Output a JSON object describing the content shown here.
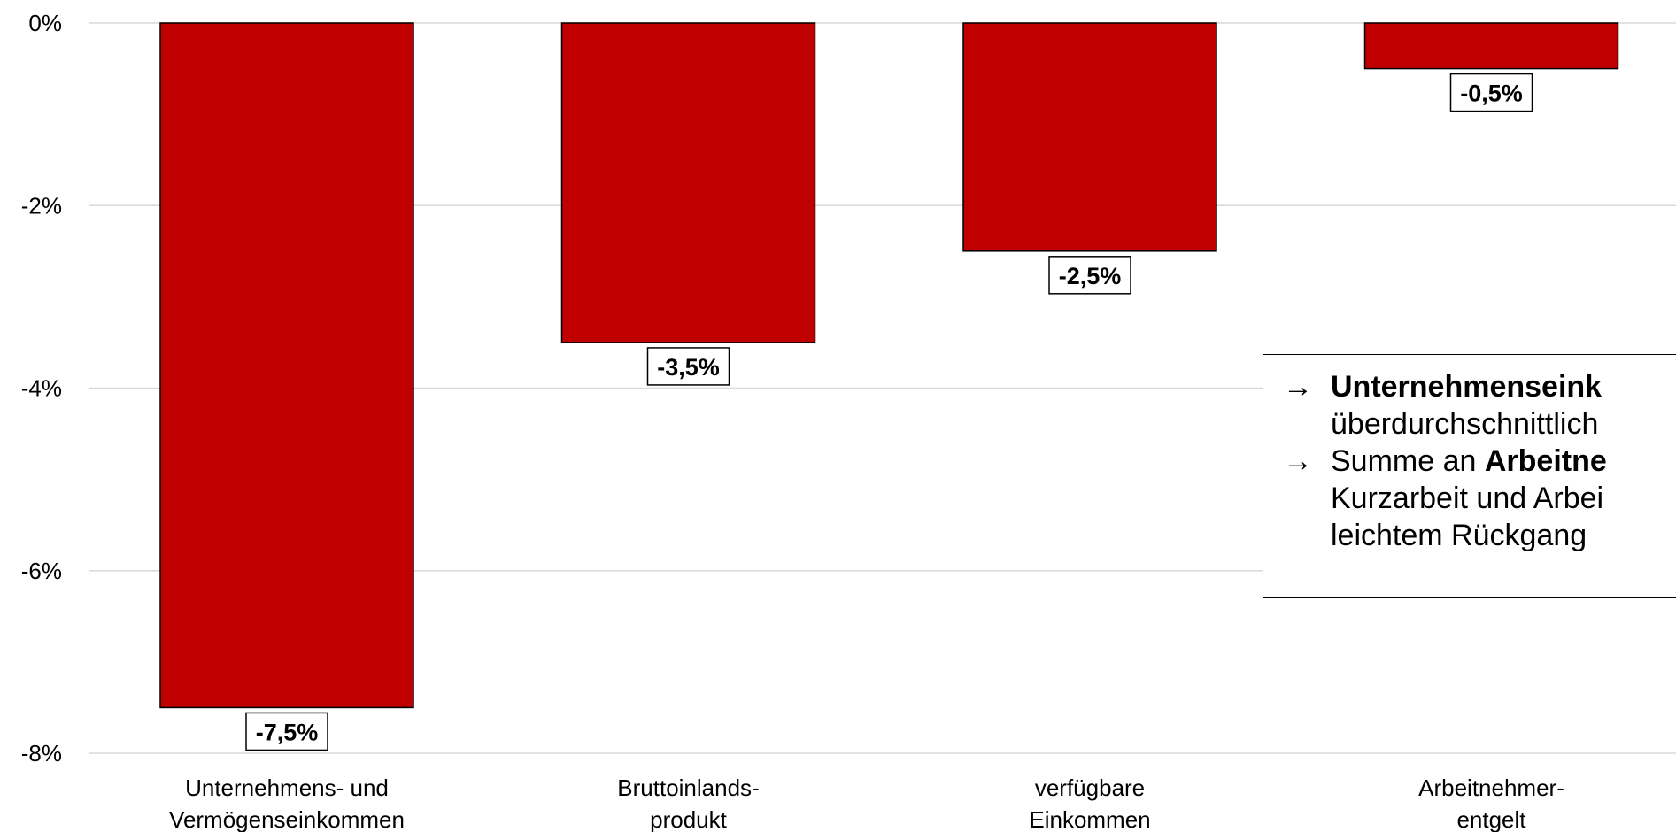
{
  "chart_data": {
    "type": "bar",
    "categories": [
      [
        "Unternehmens- und",
        "Vermögenseinkommen"
      ],
      [
        "Bruttoinlands-",
        "produkt"
      ],
      [
        "verfügbare",
        "Einkommen"
      ],
      [
        "Arbeitnehmer-",
        "entgelt"
      ]
    ],
    "values": [
      -7.5,
      -3.5,
      -2.5,
      -0.5
    ],
    "data_labels": [
      "-7,5%",
      "-3,5%",
      "-2,5%",
      "-0,5%"
    ],
    "y_ticks": [
      0,
      -2,
      -4,
      -6,
      -8
    ],
    "y_tick_labels": [
      "0%",
      "-2%",
      "-4%",
      "-6%",
      "-8%"
    ],
    "ylim": [
      -8,
      0
    ],
    "grid": true,
    "bar_color": "#c00000",
    "gridline_color": "#d9d9d9"
  },
  "note": {
    "arrow": "→",
    "line1_bold": "Unternehmenseink",
    "line2": "überdurchschnittlich",
    "line3_pre": "Summe an ",
    "line3_bold": "Arbeitne",
    "line4": "Kurzarbeit und Arbei",
    "line5": "leichtem Rückgang"
  }
}
